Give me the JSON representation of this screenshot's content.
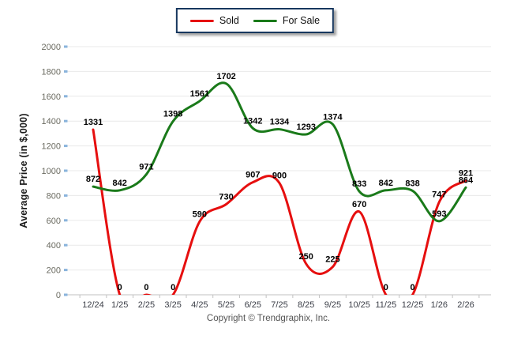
{
  "chart_data": {
    "type": "line",
    "title": "",
    "xlabel": "",
    "ylabel": "Average Price (in $,000)",
    "categories": [
      "12/24",
      "1/25",
      "2/25",
      "3/25",
      "4/25",
      "5/25",
      "6/25",
      "7/25",
      "8/25",
      "9/25",
      "10/25",
      "11/25",
      "12/25",
      "1/26",
      "2/26"
    ],
    "series": [
      {
        "name": "Sold",
        "color": "#e60f0f",
        "values": [
          1331,
          0,
          0,
          0,
          590,
          730,
          907,
          900,
          250,
          225,
          670,
          0,
          0,
          747,
          921
        ]
      },
      {
        "name": "For Sale",
        "color": "#1a7a1a",
        "values": [
          872,
          842,
          971,
          1398,
          1561,
          1702,
          1342,
          1334,
          1293,
          1374,
          833,
          842,
          838,
          593,
          864
        ]
      }
    ],
    "ylim": [
      0,
      2000
    ],
    "yticks": [
      0,
      200,
      400,
      600,
      800,
      1000,
      1200,
      1400,
      1600,
      1800,
      2000
    ],
    "grid": true,
    "smooth": true,
    "data_labels": true,
    "legend_position": "top-center"
  },
  "legend": {
    "border_color": "#17375e"
  },
  "footer": {
    "copyright": "Copyright © Trendgraphix, Inc."
  }
}
